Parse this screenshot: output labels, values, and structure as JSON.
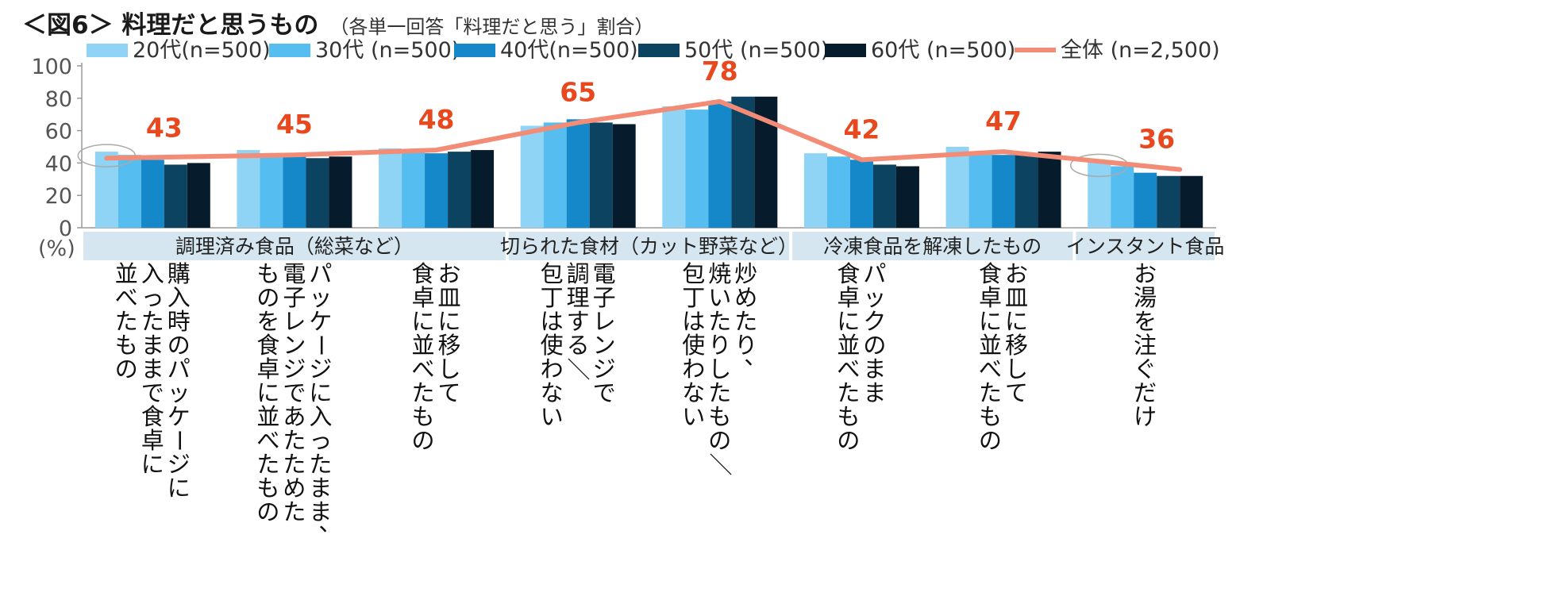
{
  "title": {
    "main": "＜図6＞ 料理だと思うもの",
    "sub": "（各単一回答「料理だと思う」割合）"
  },
  "chart_data": {
    "type": "bar",
    "title": "料理だと思うもの",
    "unit_label": "(%)",
    "ylim": [
      0,
      100
    ],
    "yticks": [
      0,
      20,
      40,
      60,
      80,
      100
    ],
    "legend_position": "top",
    "groups": [
      {
        "label": "調理済み食品（総菜など）",
        "start": 0,
        "end": 2
      },
      {
        "label": "切られた食材（カット野菜など）",
        "start": 3,
        "end": 4
      },
      {
        "label": "冷凍食品を解凍したもの",
        "start": 5,
        "end": 6
      },
      {
        "label": "インスタント食品",
        "start": 7,
        "end": 7
      }
    ],
    "categories": [
      [
        "購入時のパッケージに",
        "入ったままで食卓に",
        "並べたもの"
      ],
      [
        "パッケージに入ったまま、",
        "電子レンジであたためた",
        "ものを食卓に並べたもの"
      ],
      [
        "お皿に移して",
        "食卓に並べたもの"
      ],
      [
        "電子レンジで",
        "調理する／",
        "包丁は使わない"
      ],
      [
        "炒めたり、",
        "焼いたりしたもの／",
        "包丁は使わない"
      ],
      [
        "パックのまま",
        "食卓に並べたもの"
      ],
      [
        "お皿に移して",
        "食卓に並べたもの"
      ],
      [
        "お湯を注ぐだけ"
      ]
    ],
    "series": [
      {
        "name": "20代(n=500)",
        "color": "#8fd3f5",
        "values": [
          47,
          48,
          49,
          63,
          75,
          46,
          50,
          41
        ]
      },
      {
        "name": "30代 (n=500)",
        "color": "#55bdef",
        "values": [
          45,
          46,
          47,
          65,
          73,
          44,
          46,
          38
        ]
      },
      {
        "name": "40代(n=500)",
        "color": "#1488c8",
        "values": [
          42,
          44,
          46,
          67,
          78,
          42,
          45,
          34
        ]
      },
      {
        "name": "50代 (n=500)",
        "color": "#0b4361",
        "values": [
          39,
          43,
          47,
          65,
          81,
          39,
          46,
          32
        ]
      },
      {
        "name": "60代 (n=500)",
        "color": "#061c2d",
        "values": [
          40,
          44,
          48,
          64,
          81,
          38,
          47,
          32
        ]
      }
    ],
    "total": {
      "name": "全体 (n=2,500)",
      "color": "#f28c77",
      "label_color": "#e8481e",
      "values": [
        43,
        45,
        48,
        65,
        78,
        42,
        47,
        36
      ]
    },
    "highlight_categories": [
      0,
      7
    ]
  }
}
